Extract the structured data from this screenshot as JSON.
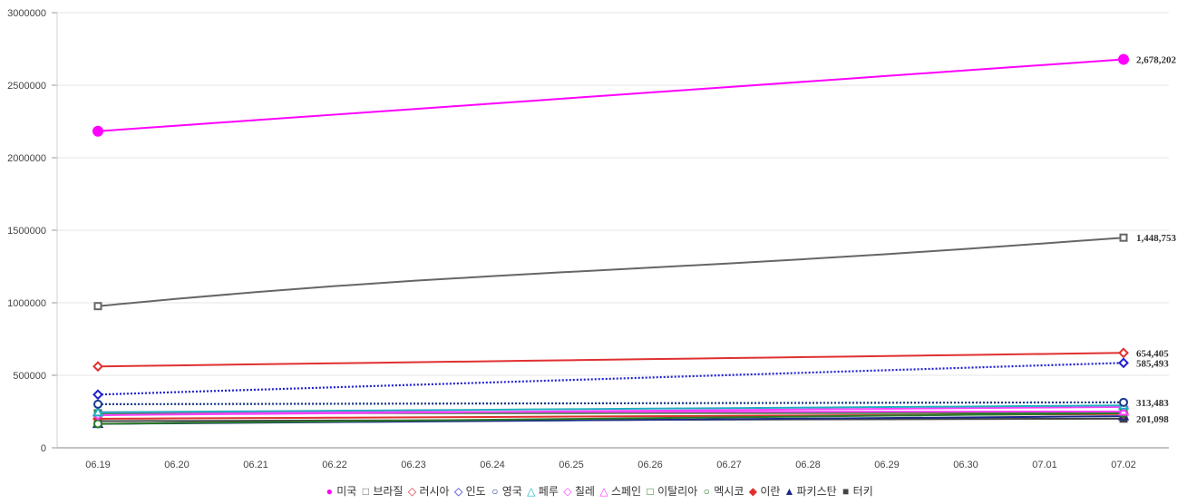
{
  "chart_data": {
    "type": "line",
    "categories": [
      "06.19",
      "06.20",
      "06.21",
      "06.22",
      "06.23",
      "06.24",
      "06.25",
      "06.26",
      "06.27",
      "06.28",
      "06.29",
      "06.30",
      "07.01",
      "07.02"
    ],
    "ylim": [
      0,
      3000000
    ],
    "yticks": [
      "0",
      "500000",
      "1000000",
      "1500000",
      "2000000",
      "2500000",
      "3000000"
    ],
    "grid": true,
    "legend_position": "bottom",
    "series": [
      {
        "name": "미국",
        "color": "#ff00ff",
        "marker": "circle-filled",
        "dash": "solid",
        "start": 2183000,
        "end": 2678202,
        "end_label": "2,678,202",
        "curve": "linear"
      },
      {
        "name": "브라질",
        "color": "#666666",
        "marker": "square-open",
        "dash": "solid",
        "start": 976906,
        "end": 1448753,
        "end_label": "1,448,753",
        "curve": "brazil"
      },
      {
        "name": "러시아",
        "color": "#e03030",
        "marker": "diamond-open",
        "dash": "solid",
        "start": 561091,
        "end": 654405,
        "end_label": "654,405",
        "curve": "linear"
      },
      {
        "name": "인도",
        "color": "#2020d0",
        "marker": "diamond-open",
        "dash": "dotted",
        "start": 366946,
        "end": 585493,
        "end_label": "585,493",
        "curve": "linear"
      },
      {
        "name": "영국",
        "color": "#1a3a8a",
        "marker": "circle-open",
        "dash": "dotted",
        "start": 300469,
        "end": 313483,
        "end_label": "313,483",
        "curve": "linear"
      },
      {
        "name": "페루",
        "color": "#20b0c0",
        "marker": "triangle-open",
        "dash": "solid",
        "start": 244388,
        "end": 292004,
        "end_label": "",
        "curve": "linear"
      },
      {
        "name": "칠레",
        "color": "#ff40ff",
        "marker": "diamond-open",
        "dash": "solid",
        "start": 225103,
        "end": 282043,
        "end_label": "",
        "curve": "linear"
      },
      {
        "name": "스페인",
        "color": "#ff40ff",
        "marker": "triangle-open",
        "dash": "solid",
        "start": 245268,
        "end": 250103,
        "end_label": "",
        "curve": "linear"
      },
      {
        "name": "이탈리아",
        "color": "#2a7a2a",
        "marker": "square-open",
        "dash": "solid",
        "start": 238159,
        "end": 240760,
        "end_label": "",
        "curve": "linear"
      },
      {
        "name": "멕시코",
        "color": "#2a7a2a",
        "marker": "circle-open",
        "dash": "solid",
        "start": 165455,
        "end": 238511,
        "end_label": "",
        "curve": "linear"
      },
      {
        "name": "이란",
        "color": "#e03030",
        "marker": "diamond-filled",
        "dash": "solid",
        "start": 200262,
        "end": 232863,
        "end_label": "",
        "curve": "linear"
      },
      {
        "name": "파키스탄",
        "color": "#1a2a8a",
        "marker": "triangle-filled",
        "dash": "solid",
        "start": 165062,
        "end": 217809,
        "end_label": "",
        "curve": "linear"
      },
      {
        "name": "터키",
        "color": "#444444",
        "marker": "square-filled",
        "dash": "solid",
        "start": 184031,
        "end": 201098,
        "end_label": "201,098",
        "curve": "linear"
      }
    ]
  }
}
